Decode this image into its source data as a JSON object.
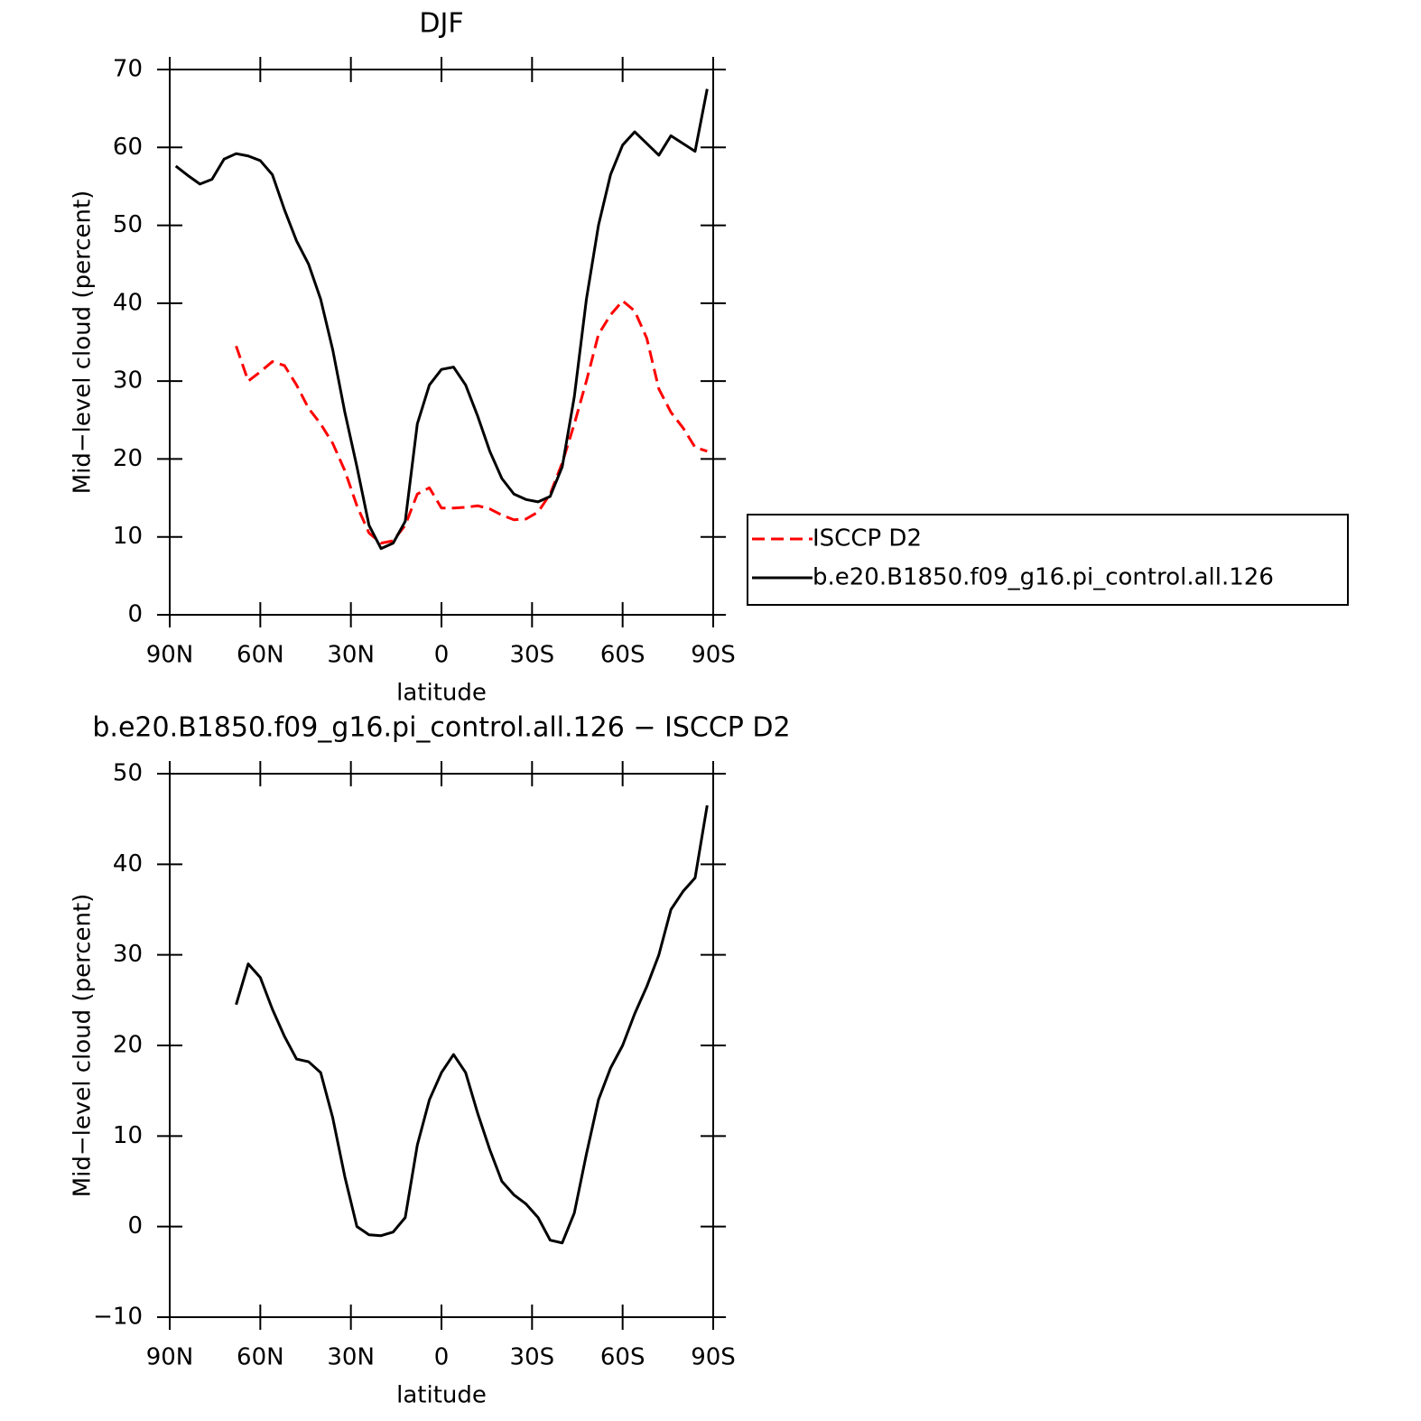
{
  "chart_data": [
    {
      "type": "line",
      "title": "DJF",
      "x_label": "latitude",
      "y_label": "Mid−level cloud (percent)",
      "x": [
        88,
        84,
        80,
        76,
        72,
        68,
        64,
        60,
        56,
        52,
        48,
        44,
        40,
        36,
        32,
        28,
        24,
        20,
        16,
        12,
        8,
        4,
        0,
        -4,
        -8,
        -12,
        -16,
        -20,
        -24,
        -28,
        -32,
        -36,
        -40,
        -44,
        -48,
        -52,
        -56,
        -60,
        -64,
        -68,
        -72,
        -76,
        -80,
        -84,
        -88
      ],
      "series": [
        {
          "name": "ISCCP D2",
          "color": "#ff0000",
          "dashed": true,
          "values": [
            null,
            null,
            null,
            null,
            null,
            34.5,
            30,
            31.2,
            32.5,
            32,
            29.5,
            26.5,
            24.5,
            22,
            18.5,
            14,
            10.5,
            9.2,
            9.5,
            11.5,
            15.5,
            16.3,
            13.7,
            13.7,
            13.8,
            14,
            13.6,
            12.8,
            12.2,
            12.3,
            13.2,
            15.5,
            19.5,
            24.5,
            30,
            36,
            38.5,
            40.3,
            39,
            35.5,
            29,
            26,
            24,
            21.5,
            21
          ]
        },
        {
          "name": "b.e20.B1850.f09_g16.pi_control.all.126",
          "color": "#000000",
          "dashed": false,
          "values": [
            57.6,
            56.4,
            55.3,
            55.9,
            58.5,
            59.2,
            58.9,
            58.3,
            56.5,
            52,
            48,
            45,
            40.5,
            34,
            26,
            19,
            11.5,
            8.5,
            9.2,
            12,
            24.5,
            29.5,
            31.5,
            31.8,
            29.5,
            25.5,
            21,
            17.5,
            15.5,
            14.8,
            14.5,
            15.2,
            19,
            28,
            40.5,
            50,
            56.5,
            60.3,
            62,
            60.5,
            59,
            61.5,
            60.5,
            59.5,
            67.5
          ]
        }
      ],
      "xlim": [
        90,
        -90
      ],
      "xticks": [
        {
          "value": 90,
          "label": "90N"
        },
        {
          "value": 60,
          "label": "60N"
        },
        {
          "value": 30,
          "label": "30N"
        },
        0,
        {
          "value": -30,
          "label": "30S"
        },
        {
          "value": -60,
          "label": "60S"
        },
        {
          "value": -90,
          "label": "90S"
        }
      ],
      "ylim": [
        0,
        70
      ],
      "yticks": [
        0,
        10,
        20,
        30,
        40,
        50,
        60,
        70
      ],
      "legend": "right"
    },
    {
      "type": "line",
      "title": "b.e20.B1850.f09_g16.pi_control.all.126 − ISCCP D2",
      "x_label": "latitude",
      "y_label": "Mid−level cloud (percent)",
      "x": [
        88,
        84,
        80,
        76,
        72,
        68,
        64,
        60,
        56,
        52,
        48,
        44,
        40,
        36,
        32,
        28,
        24,
        20,
        16,
        12,
        8,
        4,
        0,
        -4,
        -8,
        -12,
        -16,
        -20,
        -24,
        -28,
        -32,
        -36,
        -40,
        -44,
        -48,
        -52,
        -56,
        -60,
        -64,
        -68,
        -72,
        -76,
        -80,
        -84,
        -88
      ],
      "series": [
        {
          "color": "#000000",
          "dashed": false,
          "values": [
            null,
            null,
            null,
            null,
            null,
            24.5,
            29,
            27.5,
            24,
            21,
            18.5,
            18.2,
            17,
            12,
            5.5,
            0,
            -0.9,
            -1,
            -0.6,
            1,
            9,
            14,
            17,
            19,
            17,
            12.5,
            8.5,
            5,
            3.5,
            2.5,
            1,
            -1.5,
            -1.8,
            1.5,
            8,
            14,
            17.5,
            20,
            23.5,
            26.5,
            30,
            35,
            37,
            38.5,
            46.5
          ]
        }
      ],
      "xlim": [
        90,
        -90
      ],
      "xticks": [
        {
          "value": 90,
          "label": "90N"
        },
        {
          "value": 60,
          "label": "60N"
        },
        {
          "value": 30,
          "label": "30N"
        },
        0,
        {
          "value": -30,
          "label": "30S"
        },
        {
          "value": -60,
          "label": "60S"
        },
        {
          "value": -90,
          "label": "90S"
        }
      ],
      "ylim": [
        -10,
        50
      ],
      "yticks": [
        {
          "value": -10,
          "label": "−10"
        },
        0,
        10,
        20,
        30,
        40,
        50
      ]
    }
  ]
}
